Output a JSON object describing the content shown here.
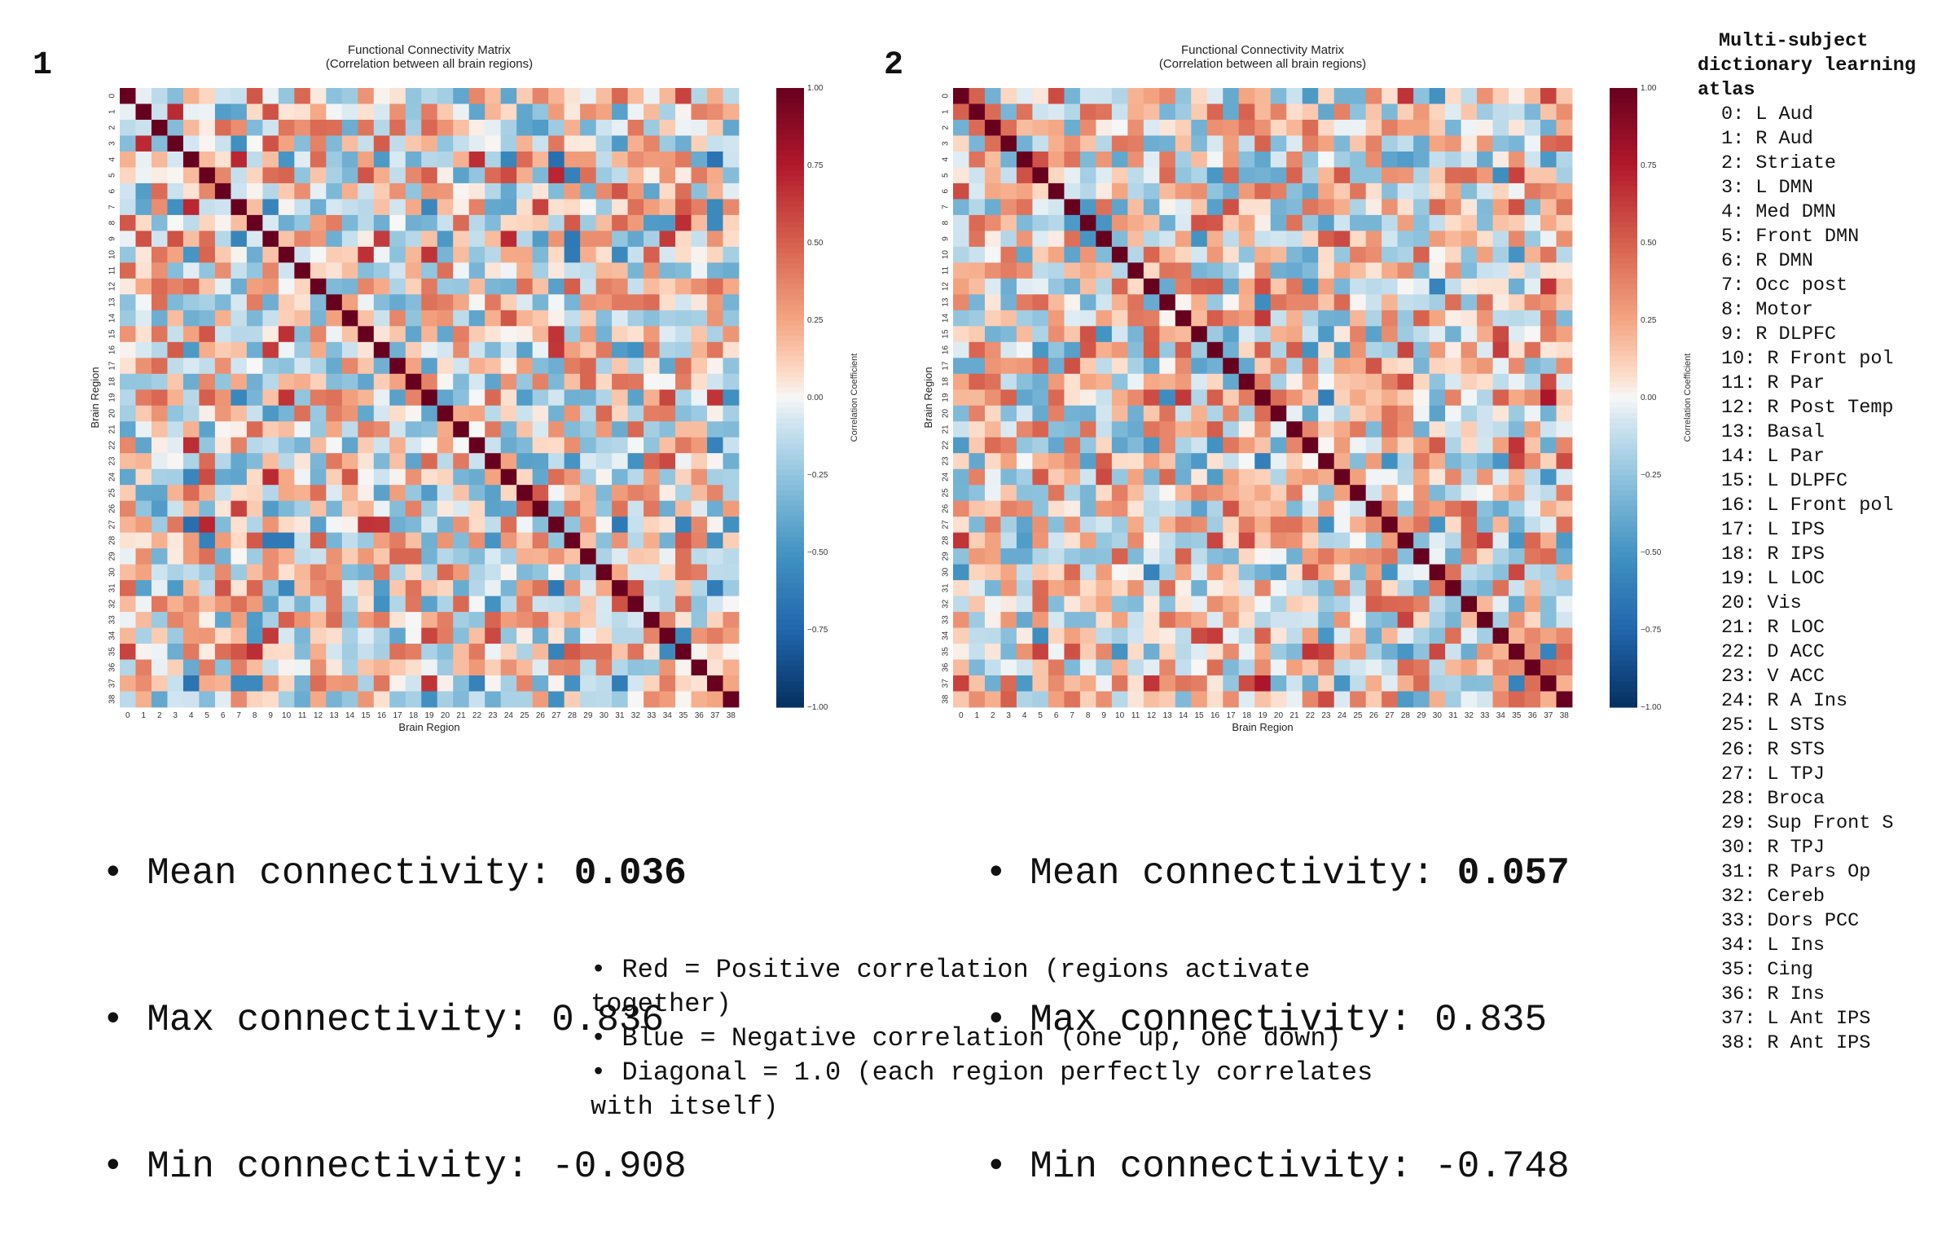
{
  "panels": [
    {
      "label": "1",
      "stats": {
        "mean_label": "Mean connectivity: ",
        "mean_value": "0.036",
        "max_label": "Max connectivity: ",
        "max_value": "0.836",
        "min_label": "Min connectivity: ",
        "min_value": "-0.908"
      }
    },
    {
      "label": "2",
      "stats": {
        "mean_label": "Mean connectivity: ",
        "mean_value": "0.057",
        "max_label": "Max connectivity: ",
        "max_value": "0.835",
        "min_label": "Min connectivity: ",
        "min_value": "-0.748"
      }
    }
  ],
  "chart_data": [
    {
      "type": "heatmap",
      "title": "Functional Connectivity Matrix",
      "subtitle": "(Correlation between all brain regions)",
      "xlabel": "Brain Region",
      "ylabel": "Brain Region",
      "colorbar_label": "Correlation Coefficient",
      "colorbar_ticks": [
        "1.00",
        "0.75",
        "0.50",
        "0.25",
        "0.00",
        "−0.25",
        "−0.50",
        "−0.75",
        "−1.00"
      ],
      "vmin": -1,
      "vmax": 1,
      "size": 39,
      "colormap": "RdBu_r",
      "diagonal": 1.0,
      "mean": 0.036,
      "max_offdiag": 0.836,
      "min": -0.908,
      "seed": 7
    },
    {
      "type": "heatmap",
      "title": "Functional Connectivity Matrix",
      "subtitle": "(Correlation between all brain regions)",
      "xlabel": "Brain Region",
      "ylabel": "Brain Region",
      "colorbar_label": "Correlation Coefficient",
      "colorbar_ticks": [
        "1.00",
        "0.75",
        "0.50",
        "0.25",
        "0.00",
        "−0.25",
        "−0.50",
        "−0.75",
        "−1.00"
      ],
      "vmin": -1,
      "vmax": 1,
      "size": 39,
      "colormap": "RdBu_r",
      "diagonal": 1.0,
      "mean": 0.057,
      "max_offdiag": 0.835,
      "min": -0.748,
      "seed": 23
    }
  ],
  "legend": {
    "line1": "• Red = Positive correlation (regions activate together)",
    "line2": "• Blue = Negative correlation (one up, one down)",
    "line3": "• Diagonal = 1.0 (each region perfectly correlates with itself)"
  },
  "atlas": {
    "title_line1": "Multi-subject",
    "title_line2": "dictionary learning",
    "title_line3": "atlas",
    "regions": [
      "0: L Aud",
      "1: R Aud",
      "2: Striate",
      "3: L DMN",
      "4: Med DMN",
      "5: Front DMN",
      "6: R DMN",
      "7: Occ post",
      "8: Motor",
      "9: R DLPFC",
      "10: R Front pol",
      "11: R Par",
      "12: R Post Temp",
      "13: Basal",
      "14: L Par",
      "15: L DLPFC",
      "16: L Front pol",
      "17: L IPS",
      "18: R IPS",
      "19: L LOC",
      "20: Vis",
      "21: R LOC",
      "22: D ACC",
      "23: V ACC",
      "24: R A Ins",
      "25: L STS",
      "26: R STS",
      "27: L TPJ",
      "28: Broca",
      "29: Sup Front S",
      "30: R TPJ",
      "31: R Pars Op",
      "32: Cereb",
      "33: Dors PCC",
      "34: L Ins",
      "35: Cing",
      "36: R Ins",
      "37: L Ant IPS",
      "38: R Ant IPS"
    ]
  }
}
